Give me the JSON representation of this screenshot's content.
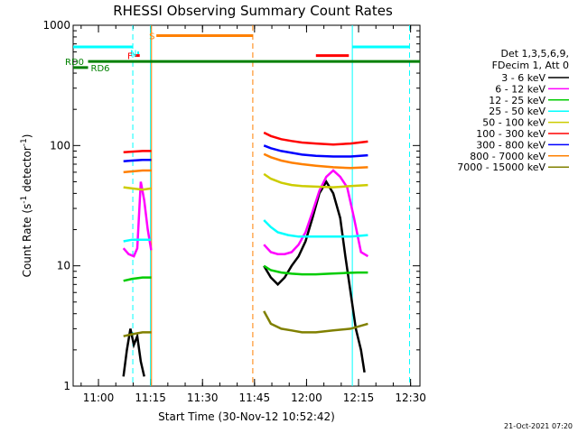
{
  "chart_data": {
    "type": "line",
    "title": "RHESSI Observing Summary Count Rates",
    "xlabel": "Start Time (30-Nov-12 10:52:42)",
    "ylabel_main": "Count Rate (s",
    "ylabel_sup1": "-1",
    "ylabel_mid": " detector",
    "ylabel_sup2": "-1",
    "ylabel_end": ")",
    "x_unit": "minutes after 10:52:42",
    "xlim": [
      0,
      100
    ],
    "ylim": [
      1,
      1000
    ],
    "yscale": "log",
    "x_ticks": [
      {
        "label": "11:00",
        "value": 7.3
      },
      {
        "label": "11:15",
        "value": 22.3
      },
      {
        "label": "11:30",
        "value": 37.3
      },
      {
        "label": "11:45",
        "value": 52.3
      },
      {
        "label": "12:00",
        "value": 67.3
      },
      {
        "label": "12:15",
        "value": 82.3
      },
      {
        "label": "12:30",
        "value": 97.3
      }
    ],
    "y_ticks": [
      {
        "label": "1",
        "value": 1
      },
      {
        "label": "10",
        "value": 10
      },
      {
        "label": "100",
        "value": 100
      },
      {
        "label": "1000",
        "value": 1000
      }
    ],
    "legend_header": [
      "Det 1,3,5,6,9,",
      "FDecim 1, Att 0"
    ],
    "legend_placement": "right",
    "series": [
      {
        "name": "3 - 6 keV",
        "color": "#000000",
        "segments": [
          [
            [
              14.5,
              1.2
            ],
            [
              15.5,
              2.0
            ],
            [
              16.5,
              3.0
            ],
            [
              17.5,
              2.2
            ],
            [
              18.5,
              2.6
            ],
            [
              19.5,
              1.6
            ],
            [
              20.5,
              1.2
            ]
          ],
          [
            [
              55,
              10
            ],
            [
              57,
              8
            ],
            [
              59,
              7
            ],
            [
              61,
              8
            ],
            [
              63,
              10
            ],
            [
              65,
              12
            ],
            [
              67,
              16
            ],
            [
              69,
              25
            ],
            [
              71,
              40
            ],
            [
              73,
              50
            ],
            [
              75,
              40
            ],
            [
              77,
              25
            ],
            [
              78.5,
              12
            ],
            [
              80,
              6
            ],
            [
              81.5,
              3
            ],
            [
              83,
              2
            ],
            [
              84,
              1.3
            ]
          ]
        ]
      },
      {
        "name": "6 - 12 keV",
        "color": "#ff00ff",
        "segments": [
          [
            [
              14.5,
              14
            ],
            [
              16,
              12.5
            ],
            [
              17.5,
              12
            ],
            [
              18.5,
              14
            ],
            [
              19.5,
              50
            ],
            [
              20.5,
              35
            ],
            [
              21.5,
              20
            ],
            [
              22.5,
              13.5
            ]
          ],
          [
            [
              55,
              15
            ],
            [
              57,
              13
            ],
            [
              59,
              12.5
            ],
            [
              61,
              12.5
            ],
            [
              63,
              13
            ],
            [
              65,
              15
            ],
            [
              67,
              19
            ],
            [
              69,
              28
            ],
            [
              71,
              42
            ],
            [
              73,
              55
            ],
            [
              75,
              62
            ],
            [
              77,
              55
            ],
            [
              79,
              45
            ],
            [
              81,
              25
            ],
            [
              83,
              13
            ],
            [
              85,
              12
            ]
          ]
        ]
      },
      {
        "name": "12 - 25 keV",
        "color": "#00cc00",
        "segments": [
          [
            [
              14.5,
              7.5
            ],
            [
              17,
              7.8
            ],
            [
              20,
              8.0
            ],
            [
              22.5,
              8.0
            ]
          ],
          [
            [
              55,
              10
            ],
            [
              57,
              9.2
            ],
            [
              60,
              8.8
            ],
            [
              63,
              8.6
            ],
            [
              66,
              8.5
            ],
            [
              70,
              8.5
            ],
            [
              74,
              8.6
            ],
            [
              78,
              8.7
            ],
            [
              82,
              8.8
            ],
            [
              85,
              8.8
            ]
          ]
        ]
      },
      {
        "name": "25 - 50 keV",
        "color": "#00ffff",
        "segments": [
          [
            [
              14.5,
              16
            ],
            [
              17,
              16.5
            ],
            [
              20,
              16.5
            ],
            [
              22.5,
              16.5
            ]
          ],
          [
            [
              55,
              24
            ],
            [
              57,
              21
            ],
            [
              59,
              19
            ],
            [
              62,
              18
            ],
            [
              65,
              17.5
            ],
            [
              70,
              17.5
            ],
            [
              75,
              17.5
            ],
            [
              80,
              17.5
            ],
            [
              85,
              18
            ]
          ]
        ]
      },
      {
        "name": "50 - 100 keV",
        "color": "#cccc00",
        "segments": [
          [
            [
              14.5,
              45
            ],
            [
              17,
              44
            ],
            [
              20,
              43
            ],
            [
              22.5,
              44
            ]
          ],
          [
            [
              55,
              58
            ],
            [
              57,
              53
            ],
            [
              60,
              49
            ],
            [
              63,
              47
            ],
            [
              66,
              46
            ],
            [
              70,
              45.5
            ],
            [
              75,
              45
            ],
            [
              80,
              46
            ],
            [
              85,
              47
            ]
          ]
        ]
      },
      {
        "name": "100 - 300 keV",
        "color": "#ff0000",
        "segments": [
          [
            [
              14.5,
              88
            ],
            [
              17,
              89
            ],
            [
              20,
              90
            ],
            [
              22.5,
              90
            ]
          ],
          [
            [
              55,
              128
            ],
            [
              57,
              120
            ],
            [
              60,
              113
            ],
            [
              63,
              109
            ],
            [
              66,
              106
            ],
            [
              70,
              104
            ],
            [
              75,
              102
            ],
            [
              80,
              104
            ],
            [
              85,
              108
            ]
          ]
        ]
      },
      {
        "name": "300 - 800 keV",
        "color": "#0000ff",
        "segments": [
          [
            [
              14.5,
              74
            ],
            [
              17,
              75
            ],
            [
              20,
              76
            ],
            [
              22.5,
              76
            ]
          ],
          [
            [
              55,
              100
            ],
            [
              57,
              95
            ],
            [
              60,
              90
            ],
            [
              63,
              87
            ],
            [
              66,
              84
            ],
            [
              70,
              82
            ],
            [
              75,
              81
            ],
            [
              80,
              81
            ],
            [
              85,
              83
            ]
          ]
        ]
      },
      {
        "name": "800 - 7000 keV",
        "color": "#ff8000",
        "segments": [
          [
            [
              14.5,
              60
            ],
            [
              17,
              61
            ],
            [
              20,
              62
            ],
            [
              22.5,
              62
            ]
          ],
          [
            [
              55,
              85
            ],
            [
              57,
              80
            ],
            [
              60,
              75
            ],
            [
              63,
              72
            ],
            [
              66,
              70
            ],
            [
              70,
              68
            ],
            [
              75,
              66
            ],
            [
              80,
              65
            ],
            [
              85,
              66
            ]
          ]
        ]
      },
      {
        "name": "7000 - 15000 keV",
        "color": "#808000",
        "segments": [
          [
            [
              14.5,
              2.6
            ],
            [
              17,
              2.7
            ],
            [
              20,
              2.8
            ],
            [
              22.5,
              2.8
            ]
          ],
          [
            [
              55,
              4.2
            ],
            [
              57,
              3.3
            ],
            [
              60,
              3.0
            ],
            [
              63,
              2.9
            ],
            [
              66,
              2.8
            ],
            [
              70,
              2.8
            ],
            [
              75,
              2.9
            ],
            [
              80,
              3.0
            ],
            [
              85,
              3.3
            ]
          ]
        ]
      }
    ],
    "vlines": [
      {
        "x": 17.2,
        "color": "#00ffff",
        "dash": true
      },
      {
        "x": 22.3,
        "color": "#00ffff",
        "dash": false
      },
      {
        "x": 22.6,
        "color": "#ff8000",
        "dash": false
      },
      {
        "x": 51.8,
        "color": "#ff8000",
        "dash": true
      },
      {
        "x": 80.5,
        "color": "#00ffff",
        "dash": false
      },
      {
        "x": 97.0,
        "color": "#00ffff",
        "dash": true
      }
    ],
    "flag_bars": [
      {
        "label": "",
        "color": "#00ffff",
        "y": 660,
        "x0": 0,
        "x1": 17.2
      },
      {
        "label": "",
        "color": "#00ffff",
        "y": 660,
        "x0": 80.5,
        "x1": 97.0
      },
      {
        "label": "S",
        "color": "#ff8000",
        "y": 820,
        "x0": 24,
        "x1": 51.8
      },
      {
        "label": "N",
        "color": "#00ffff",
        "y": 590,
        "x0": 18.5,
        "x1": 18.6
      },
      {
        "label": "F",
        "color": "#ff0000",
        "y": 560,
        "x0": 17.7,
        "x1": 19.2
      },
      {
        "label": "",
        "color": "#ff0000",
        "y": 560,
        "x0": 70,
        "x1": 79.5
      },
      {
        "label": "RD0",
        "color": "#008000",
        "y": 500,
        "x0": 4.3,
        "x1": 100
      },
      {
        "label": "RD6",
        "color": "#008000",
        "y": 445,
        "x0": 0,
        "x1": 4.3
      }
    ],
    "grid": false
  },
  "footer": {
    "timestamp": "21-Oct-2021 07:20"
  }
}
